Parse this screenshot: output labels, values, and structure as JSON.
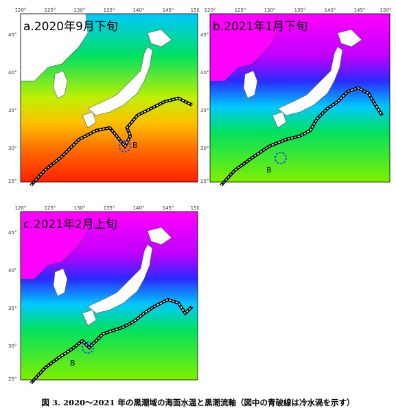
{
  "caption": "図 3. 2020～2021 年の黒潮域の海面水温と黒潮流軸（図中の青破線は冷水渦を示す）",
  "lon_ticks": [
    "120°",
    "125°",
    "130°",
    "135°",
    "140°",
    "145°",
    "150°"
  ],
  "lat_ticks": [
    "45°",
    "40°",
    "35°",
    "30°",
    "25°"
  ],
  "eddy_label": "B",
  "panels": [
    {
      "id": "a",
      "title": "a.2020年9月下旬",
      "palette": "warm"
    },
    {
      "id": "b",
      "title": "b.2021年1月下旬",
      "palette": "cold"
    },
    {
      "id": "c",
      "title": "c.2021年2月上旬",
      "palette": "cold"
    }
  ],
  "colors": {
    "magenta": "#ff00ff",
    "blue": "#2a2aff",
    "cyan": "#00c8ff",
    "green": "#00e060",
    "yellow": "#ffe000",
    "orange": "#ff8000",
    "red": "#ff2000",
    "land": "#ffffff",
    "kuroshio_axis": "#000000",
    "eddy": "#1a40ff"
  }
}
